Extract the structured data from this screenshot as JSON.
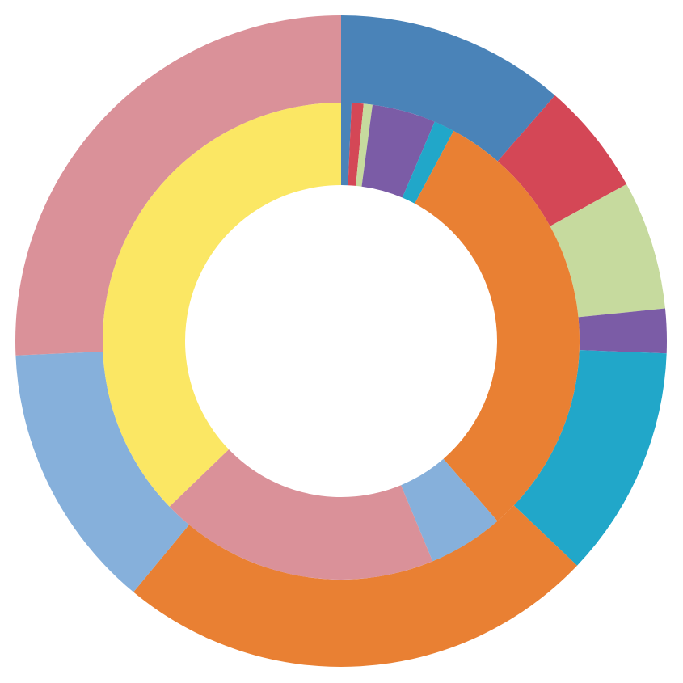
{
  "chart_data": {
    "type": "donut",
    "rings": [
      {
        "values": [
          11.4,
          5.6,
          6.4,
          2.2,
          11.5,
          23.9,
          13.3,
          25.7
        ],
        "colors": [
          "#4a83b8",
          "#d44756",
          "#c6da9e",
          "#7b5ca6",
          "#21a7c9",
          "#e98033",
          "#86b0db",
          "#da9199"
        ]
      },
      {
        "values": [
          0.7,
          0.8,
          0.6,
          4.3,
          1.4,
          30.7,
          5.1,
          19.0,
          37.1
        ],
        "colors": [
          "#4a83b8",
          "#d44756",
          "#c6da9e",
          "#7b5ca6",
          "#21a7c9",
          "#e98033",
          "#86b0db",
          "#da9199",
          "#fbe764"
        ]
      }
    ]
  }
}
